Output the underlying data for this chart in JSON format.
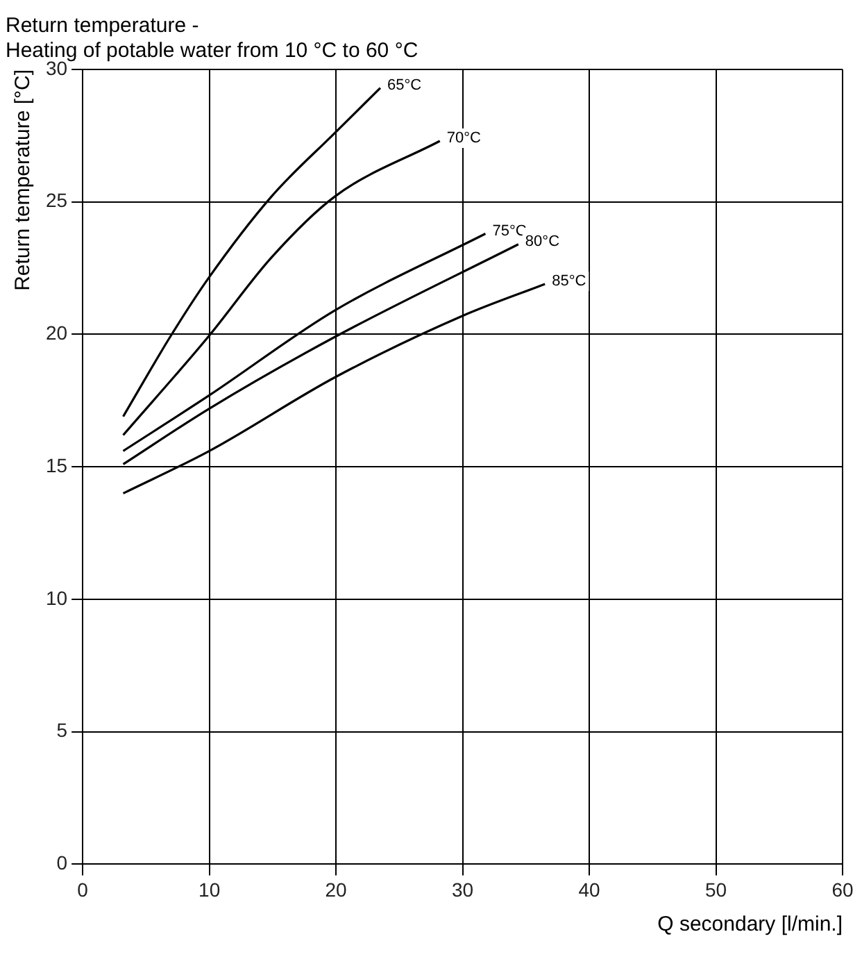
{
  "chart_data": {
    "type": "line",
    "title": "Return temperature -\nHeating of potable water from 10 °C to 60 °C",
    "xlabel": "Q secondary [l/min.]",
    "ylabel": "Return temperature [°C]",
    "xlim": [
      0,
      60
    ],
    "xticks": [
      0,
      10,
      20,
      30,
      40,
      50,
      60
    ],
    "ylim": [
      0,
      30
    ],
    "yticks": [
      0,
      5,
      10,
      15,
      20,
      25,
      30
    ],
    "grid": true,
    "legend": false,
    "marker": "none",
    "line_style": "solid",
    "series": [
      {
        "name": "65°C",
        "color": "#000000",
        "x": [
          3.2,
          6.9,
          9.9,
          14.9,
          19.9,
          23.5
        ],
        "values": [
          16.9,
          19.9,
          22.1,
          25.2,
          27.6,
          29.3
        ]
      },
      {
        "name": "70°C",
        "color": "#000000",
        "x": [
          3.2,
          9.9,
          14.9,
          19.9,
          28.2
        ],
        "values": [
          16.2,
          19.9,
          22.9,
          25.2,
          27.3
        ]
      },
      {
        "name": "75°C",
        "color": "#000000",
        "x": [
          3.2,
          10,
          19.9,
          31.8
        ],
        "values": [
          15.6,
          17.7,
          20.9,
          23.8
        ]
      },
      {
        "name": "80°C",
        "color": "#000000",
        "x": [
          3.2,
          10,
          19.9,
          34.4
        ],
        "values": [
          15.1,
          17.2,
          19.9,
          23.4
        ]
      },
      {
        "name": "85°C",
        "color": "#000000",
        "x": [
          3.2,
          10,
          20,
          30,
          36.5
        ],
        "values": [
          14.0,
          15.6,
          18.4,
          20.7,
          21.9
        ]
      }
    ]
  }
}
